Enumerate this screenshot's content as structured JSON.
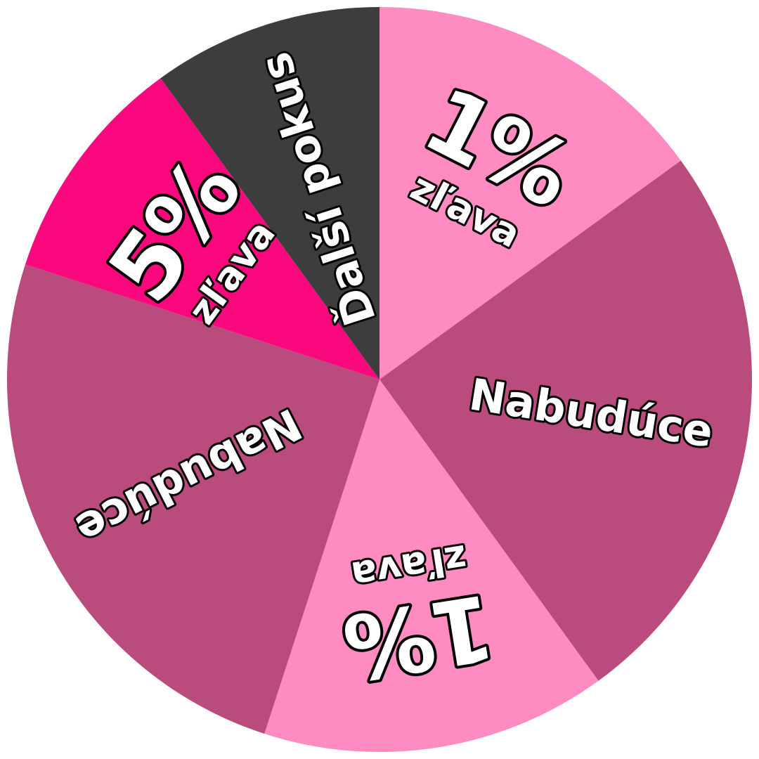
{
  "wheel": {
    "segments": [
      {
        "id": "one-percent-top",
        "label_big": "1%",
        "label_sub": "zľava",
        "color": "#FE8BC1",
        "share": 0.15
      },
      {
        "id": "nabuduce-right",
        "label": "Nabudúce",
        "color": "#B94C7C",
        "share": 0.25
      },
      {
        "id": "one-percent-bottom",
        "label_big": "1%",
        "label_sub": "zľava",
        "color": "#FE8BC1",
        "share": 0.15
      },
      {
        "id": "nabuduce-left",
        "label": "Nabudúce",
        "color": "#B94C7C",
        "share": 0.25
      },
      {
        "id": "five-percent",
        "label_big": "5%",
        "label_sub": "zľava",
        "color": "#F9087E",
        "share": 0.1
      },
      {
        "id": "dalsi-pokus",
        "label": "Ďalší pokus",
        "color": "#3D3D3D",
        "share": 0.1
      }
    ]
  }
}
